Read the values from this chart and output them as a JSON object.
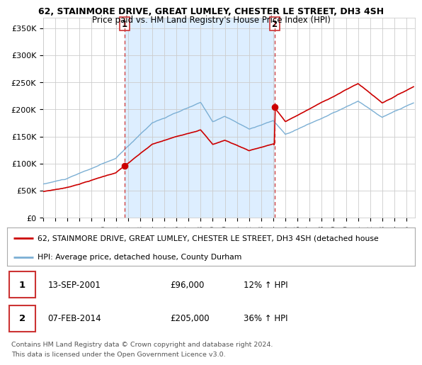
{
  "title_line1": "62, STAINMORE DRIVE, GREAT LUMLEY, CHESTER LE STREET, DH3 4SH",
  "title_line2": "Price paid vs. HM Land Registry's House Price Index (HPI)",
  "ylabel_ticks": [
    "£0",
    "£50K",
    "£100K",
    "£150K",
    "£200K",
    "£250K",
    "£300K",
    "£350K"
  ],
  "ytick_values": [
    0,
    50000,
    100000,
    150000,
    200000,
    250000,
    300000,
    350000
  ],
  "ylim": [
    0,
    370000
  ],
  "xlim_start": 1995.3,
  "xlim_end": 2025.7,
  "xtick_years": [
    1995,
    1996,
    1997,
    1998,
    1999,
    2000,
    2001,
    2002,
    2003,
    2004,
    2005,
    2006,
    2007,
    2008,
    2009,
    2010,
    2011,
    2012,
    2013,
    2014,
    2015,
    2016,
    2017,
    2018,
    2019,
    2020,
    2021,
    2022,
    2023,
    2024,
    2025
  ],
  "hpi_color": "#7bafd4",
  "price_color": "#cc0000",
  "vline_color": "#cc3333",
  "shade_color": "#ddeeff",
  "sale1_year": 2001.7,
  "sale1_price": 96000,
  "sale2_year": 2014.1,
  "sale2_price": 205000,
  "legend_line1": "62, STAINMORE DRIVE, GREAT LUMLEY, CHESTER LE STREET, DH3 4SH (detached house",
  "legend_line2": "HPI: Average price, detached house, County Durham",
  "table_row1": [
    "1",
    "13-SEP-2001",
    "£96,000",
    "12% ↑ HPI"
  ],
  "table_row2": [
    "2",
    "07-FEB-2014",
    "£205,000",
    "36% ↑ HPI"
  ],
  "footer_line1": "Contains HM Land Registry data © Crown copyright and database right 2024.",
  "footer_line2": "This data is licensed under the Open Government Licence v3.0.",
  "background_color": "#ffffff",
  "grid_color": "#cccccc"
}
